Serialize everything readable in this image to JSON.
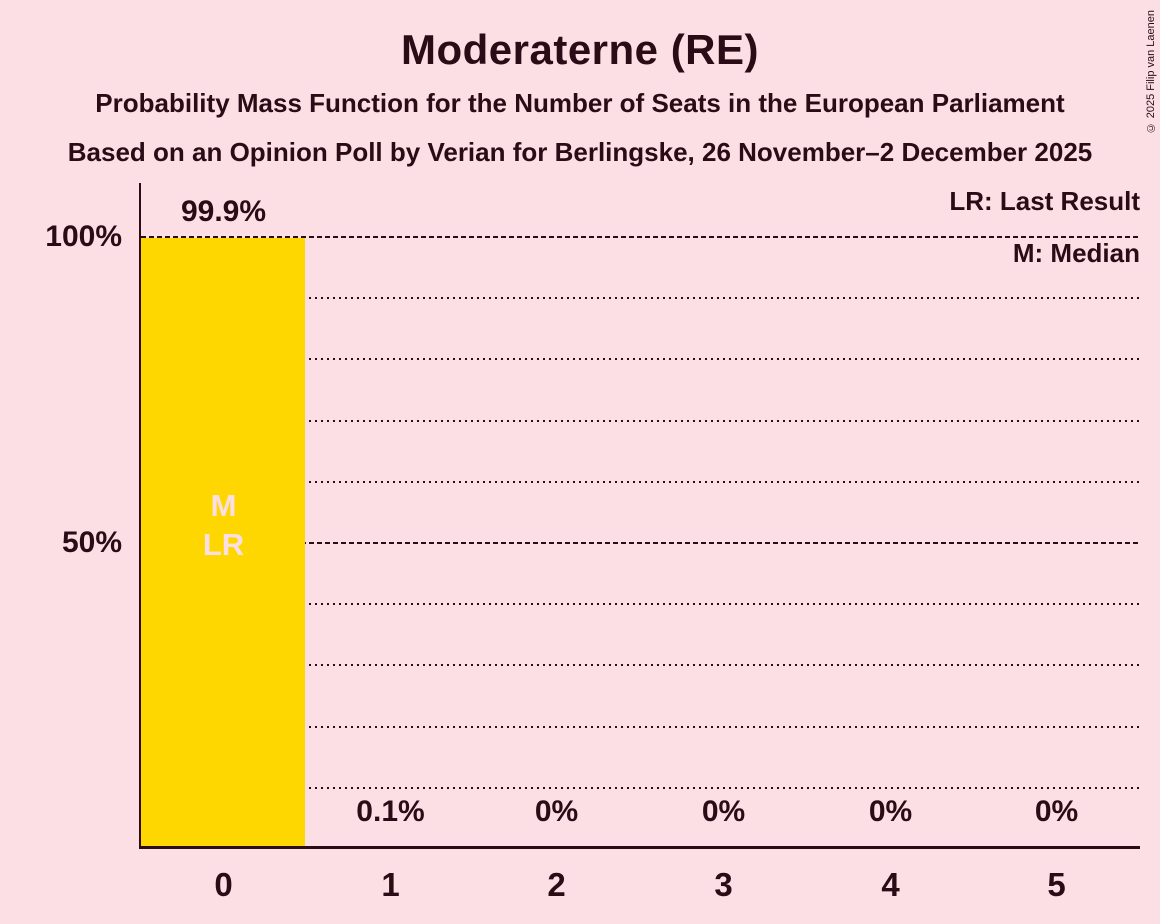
{
  "title": "Moderaterne (RE)",
  "subtitles": [
    "Probability Mass Function for the Number of Seats in the European Parliament",
    "Based on an Opinion Poll by Verian for Berlingske, 26 November–2 December 2025"
  ],
  "copyright": "© 2025 Filip van Laenen",
  "legend": {
    "last_result": "LR: Last Result",
    "median": "M: Median"
  },
  "colors": {
    "background": "#fcdfe5",
    "bar": "#ffd700",
    "text": "#2b0b16",
    "bar_annotation": "#fcdfe5"
  },
  "chart_data": {
    "type": "bar",
    "title": "Moderaterne (RE)",
    "categories": [
      "0",
      "1",
      "2",
      "3",
      "4",
      "5"
    ],
    "values": [
      99.9,
      0.1,
      0,
      0,
      0,
      0
    ],
    "value_labels": [
      "99.9%",
      "0.1%",
      "0%",
      "0%",
      "0%",
      "0%"
    ],
    "bar_annotations": [
      {
        "category": "0",
        "lines": [
          "M",
          "LR"
        ]
      }
    ],
    "y_ticks": [
      {
        "pct": 100,
        "label": "100%"
      },
      {
        "pct": 50,
        "label": "50%"
      }
    ],
    "major_gridlines_pct": [
      100,
      50
    ],
    "minor_gridlines_pct": [
      90,
      80,
      70,
      60,
      40,
      30,
      20,
      10
    ],
    "ylim": [
      0,
      100
    ],
    "grid": "horizontal, dotted minor / dashed major",
    "legend_position": "top-right"
  }
}
